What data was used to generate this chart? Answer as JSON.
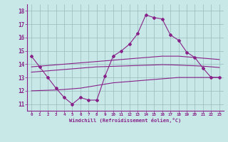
{
  "xlabel": "Windchill (Refroidissement éolien,°C)",
  "x": [
    0,
    1,
    2,
    3,
    4,
    5,
    6,
    7,
    8,
    9,
    10,
    11,
    12,
    13,
    14,
    15,
    16,
    17,
    18,
    19,
    20,
    21,
    22,
    23
  ],
  "line1": [
    14.6,
    13.8,
    13.0,
    12.2,
    11.5,
    11.0,
    11.5,
    11.3,
    11.3,
    13.1,
    14.6,
    15.0,
    15.5,
    16.3,
    17.7,
    17.5,
    17.4,
    16.2,
    15.8,
    14.9,
    14.5,
    13.7,
    13.0,
    13.0
  ],
  "line2": [
    13.8,
    13.85,
    13.9,
    13.95,
    14.0,
    14.05,
    14.1,
    14.15,
    14.2,
    14.25,
    14.3,
    14.35,
    14.4,
    14.45,
    14.5,
    14.55,
    14.6,
    14.6,
    14.6,
    14.55,
    14.5,
    14.45,
    14.4,
    14.35
  ],
  "line3": [
    13.4,
    13.45,
    13.5,
    13.55,
    13.6,
    13.65,
    13.7,
    13.75,
    13.8,
    13.82,
    13.84,
    13.86,
    13.88,
    13.9,
    13.92,
    13.94,
    13.96,
    13.95,
    13.93,
    13.9,
    13.88,
    13.85,
    13.8,
    13.75
  ],
  "line4": [
    12.0,
    12.02,
    12.04,
    12.06,
    12.1,
    12.15,
    12.2,
    12.3,
    12.4,
    12.5,
    12.6,
    12.65,
    12.7,
    12.75,
    12.8,
    12.85,
    12.9,
    12.95,
    13.0,
    13.0,
    13.0,
    13.0,
    13.0,
    13.0
  ],
  "line_color": "#882288",
  "bg_color": "#C8E8E8",
  "grid_color": "#99BBBB",
  "ylim": [
    10.5,
    18.5
  ],
  "xlim": [
    -0.5,
    23.5
  ],
  "yticks": [
    11,
    12,
    13,
    14,
    15,
    16,
    17,
    18
  ],
  "xticks": [
    0,
    1,
    2,
    3,
    4,
    5,
    6,
    7,
    8,
    9,
    10,
    11,
    12,
    13,
    14,
    15,
    16,
    17,
    18,
    19,
    20,
    21,
    22,
    23
  ]
}
